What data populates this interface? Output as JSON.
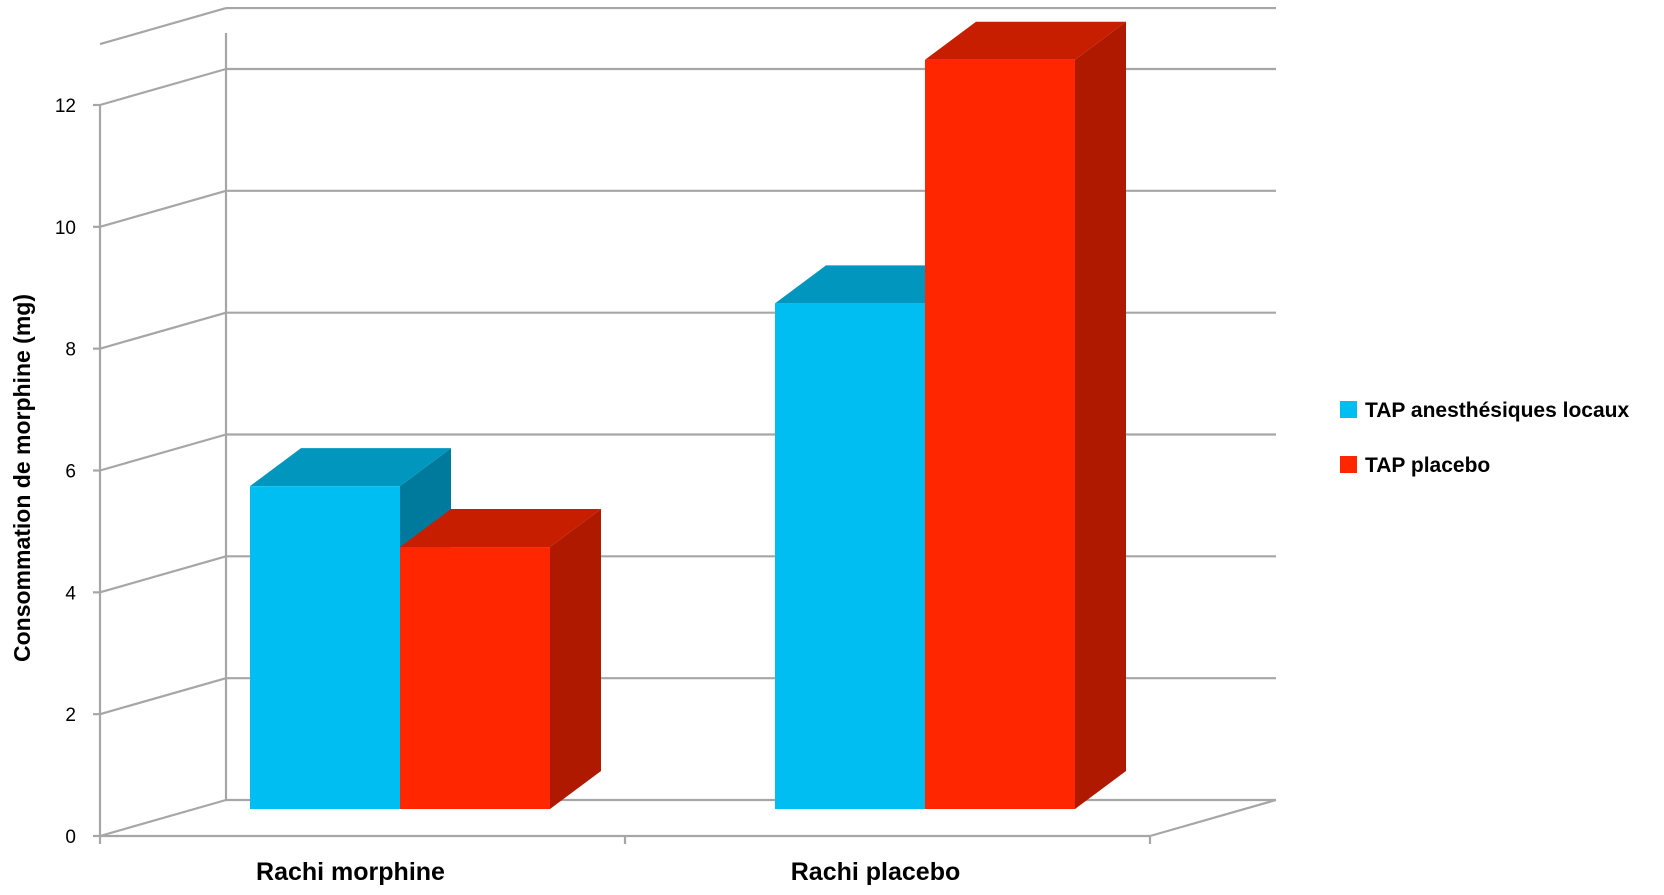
{
  "chart_data": {
    "type": "bar",
    "categories": [
      "Rachi morphine",
      "Rachi placebo"
    ],
    "series": [
      {
        "name": "TAP anesthésiques locaux",
        "values": [
          5.3,
          8.3
        ],
        "color": "#00BEF2",
        "top_color": "#0096BE",
        "side_color": "#007A9C"
      },
      {
        "name": "TAP placebo",
        "values": [
          4.3,
          12.3
        ],
        "color": "#FF2600",
        "top_color": "#C81E00",
        "side_color": "#AE1900"
      }
    ],
    "title": "",
    "xlabel": "",
    "ylabel": "Consommation de morphine (mg)",
    "ylim": [
      0,
      12
    ],
    "yticks": [
      "0",
      "2",
      "4",
      "6",
      "8",
      "10",
      "12"
    ],
    "grid": true,
    "legend_position": "right",
    "three_d": true
  }
}
